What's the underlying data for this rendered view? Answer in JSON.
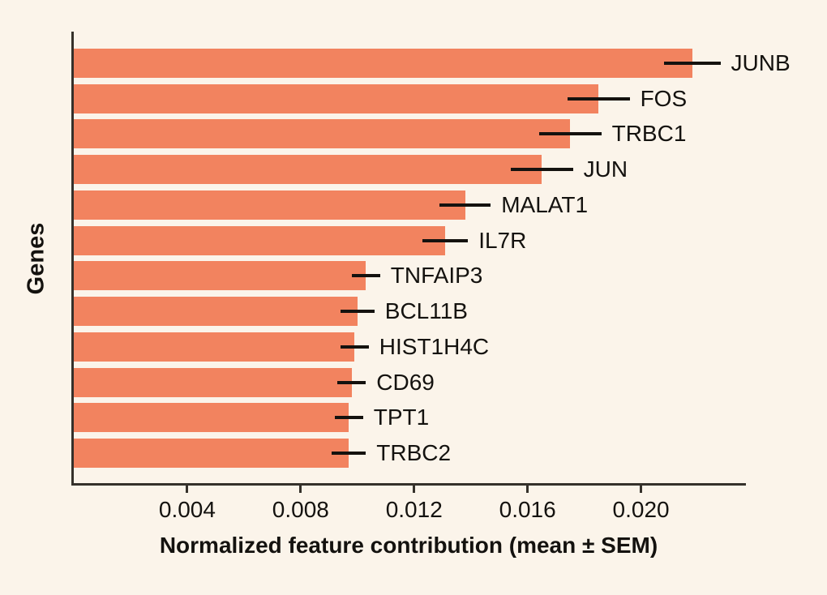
{
  "figure": {
    "background_color": "#FBF4EA",
    "bar_color": "#F2835F",
    "spine_color": "#35312B",
    "errorbar_color": "#14120F",
    "text_color": "#14120F"
  },
  "axes": {
    "xlabel": "Normalized feature contribution (mean ± SEM)",
    "ylabel": "Genes"
  },
  "chart_data": {
    "type": "bar",
    "orientation": "horizontal",
    "title": "",
    "xlabel": "Normalized feature contribution (mean ± SEM)",
    "ylabel": "Genes",
    "grid": false,
    "legend": null,
    "xlim": [
      0,
      0.0237
    ],
    "x_ticks": [
      0.004,
      0.008,
      0.012,
      0.016,
      0.02
    ],
    "x_tick_labels": [
      "0.004",
      "0.008",
      "0.012",
      "0.016",
      "0.020"
    ],
    "categories": [
      "JUNB",
      "FOS",
      "TRBC1",
      "JUN",
      "MALAT1",
      "IL7R",
      "TNFAIP3",
      "BCL11B",
      "HIST1H4C",
      "CD69",
      "TPT1",
      "TRBC2"
    ],
    "series": [
      {
        "name": "mean",
        "values": [
          0.0218,
          0.0185,
          0.0175,
          0.0165,
          0.0138,
          0.0131,
          0.0103,
          0.01,
          0.0099,
          0.0098,
          0.0097,
          0.0097
        ]
      },
      {
        "name": "sem",
        "values": [
          0.001,
          0.0011,
          0.0011,
          0.0011,
          0.0009,
          0.0008,
          0.0005,
          0.0006,
          0.0005,
          0.0005,
          0.0005,
          0.0006
        ]
      }
    ]
  }
}
